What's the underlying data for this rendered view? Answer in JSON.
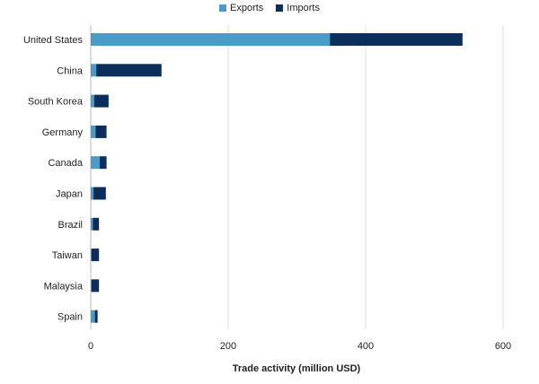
{
  "chart_data": {
    "type": "bar",
    "orientation": "horizontal",
    "stacked": true,
    "title": "",
    "xlabel": "Trade activity (million USD)",
    "ylabel": "",
    "xlim": [
      0,
      620
    ],
    "xticks": [
      0,
      200,
      400,
      600
    ],
    "grid": true,
    "legend_position": "top-center",
    "categories": [
      "United States",
      "China",
      "South Korea",
      "Germany",
      "Canada",
      "Japan",
      "Brazil",
      "Taiwan",
      "Malaysia",
      "Spain"
    ],
    "series": [
      {
        "name": "Exports",
        "color": "#4a9cc8",
        "values": [
          348,
          8,
          5,
          7,
          13,
          4,
          3,
          1,
          1,
          6
        ]
      },
      {
        "name": "Imports",
        "color": "#0b2e5c",
        "values": [
          193,
          95,
          21,
          16,
          10,
          18,
          9,
          11,
          11,
          4
        ]
      }
    ]
  }
}
